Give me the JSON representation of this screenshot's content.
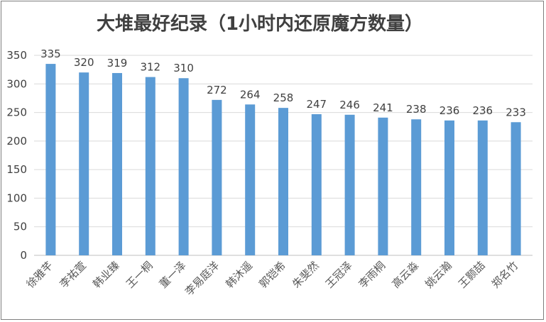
{
  "chart_data": {
    "type": "bar",
    "title": "大堆最好纪录（1小时内还原魔方数量）",
    "categories": [
      "徐雅芊",
      "李祐萱",
      "韩业臻",
      "王一桐",
      "董一泽",
      "李易庭洋",
      "韩沐遥",
      "郭铠希",
      "朱斐然",
      "王冠泽",
      "李雨桐",
      "高云淼",
      "姚云瀚",
      "王颢喆",
      "郑名竹"
    ],
    "values": [
      335,
      320,
      319,
      312,
      310,
      272,
      264,
      258,
      247,
      246,
      241,
      238,
      236,
      236,
      233
    ],
    "ylim": [
      0,
      350
    ],
    "yticks": [
      0,
      50,
      100,
      150,
      200,
      250,
      300,
      350
    ],
    "grid": true,
    "legend": "none",
    "bar_color": "#5b9bd5",
    "grid_color": "#d9d9d9",
    "axis_color": "#bfbfbf"
  }
}
